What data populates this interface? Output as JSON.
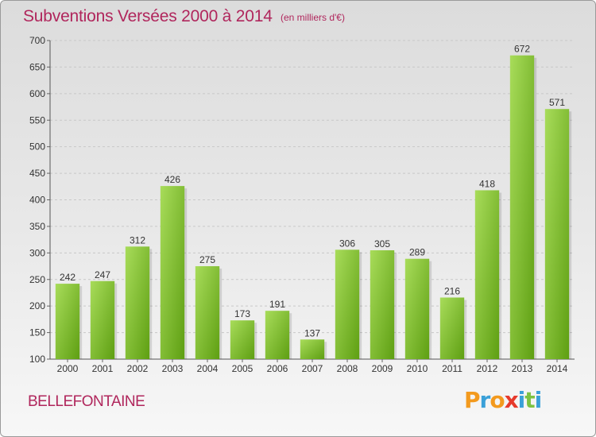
{
  "header": {
    "title": "Subventions Versées 2000 à 2014",
    "unit": "(en milliers d'€)"
  },
  "footer": {
    "place": "BELLEFONTAINE",
    "brand": "Proxiti"
  },
  "colors": {
    "title": "#b0265c",
    "bar_light": "#a8dc5a",
    "bar_dark": "#5e9f12",
    "brand_letters": [
      "#f39a1e",
      "#3aa0d8",
      "#f39a1e",
      "#e63a2c",
      "#3aa0d8",
      "#7cc243",
      "#3aa0d8"
    ]
  },
  "chart_data": {
    "type": "bar",
    "title": "Subventions Versées 2000 à 2014",
    "subtitle": "(en milliers d'€)",
    "xlabel": "",
    "ylabel": "",
    "categories": [
      "2000",
      "2001",
      "2002",
      "2003",
      "2004",
      "2005",
      "2006",
      "2007",
      "2008",
      "2009",
      "2010",
      "2011",
      "2012",
      "2013",
      "2014"
    ],
    "values": [
      242,
      247,
      312,
      426,
      275,
      173,
      191,
      137,
      306,
      305,
      289,
      216,
      418,
      672,
      571
    ],
    "ylim": [
      100,
      700
    ],
    "yticks": [
      100,
      150,
      200,
      250,
      300,
      350,
      400,
      450,
      500,
      550,
      600,
      650,
      700
    ],
    "grid": true,
    "data_labels": true
  }
}
